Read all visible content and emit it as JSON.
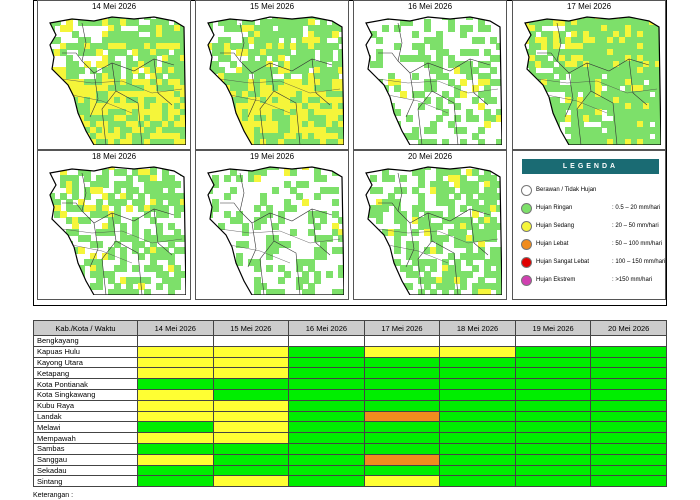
{
  "colors": {
    "none": "#ffffff",
    "ringan": "#7de06a",
    "sedang": "#f5f53a",
    "lebat": "#f08c1e",
    "sangat_lebat": "#e00000",
    "ekstrem": "#d040b0",
    "table_green": "#00ee00",
    "table_yellow": "#ffff33",
    "table_orange": "#f08c1e"
  },
  "panels": [
    {
      "date": "14 Mei 2026",
      "icon": "rain-forecast-map-icon"
    },
    {
      "date": "15 Mei 2026",
      "icon": "rain-forecast-map-icon"
    },
    {
      "date": "16 Mei 2026",
      "icon": "rain-forecast-map-icon"
    },
    {
      "date": "17 Mei 2026",
      "icon": "rain-forecast-map-icon"
    },
    {
      "date": "18 Mei 2026",
      "icon": "rain-forecast-map-icon"
    },
    {
      "date": "19 Mei 2026",
      "icon": "rain-forecast-map-icon"
    },
    {
      "date": "20 Mei 2026",
      "icon": "rain-forecast-map-icon"
    }
  ],
  "legend": {
    "title": "LEGENDA",
    "items": [
      {
        "name": "Berawan / Tidak Hujan",
        "range": "",
        "color": "#ffffff"
      },
      {
        "name": "Hujan Ringan",
        "range": ": 0.5 – 20 mm/hari",
        "color": "#7de06a"
      },
      {
        "name": "Hujan Sedang",
        "range": ": 20 – 50 mm/hari",
        "color": "#f5f53a"
      },
      {
        "name": "Hujan Lebat",
        "range": ": 50 – 100 mm/hari",
        "color": "#f08c1e"
      },
      {
        "name": "Hujan Sangat Lebat",
        "range": ": 100 – 150 mm/hari",
        "color": "#e00000"
      },
      {
        "name": "Hujan Ekstrem",
        "range": ": >150 mm/hari",
        "color": "#d040b0"
      }
    ]
  },
  "table": {
    "header": [
      "Kab./Kota / Waktu",
      "14 Mei 2026",
      "15 Mei 2026",
      "16 Mei 2026",
      "17 Mei 2026",
      "18 Mei 2026",
      "19 Mei 2026",
      "20 Mei 2026"
    ],
    "rows": [
      {
        "name": "Bengkayang",
        "cells": [
          "W",
          "W",
          "W",
          "W",
          "W",
          "W",
          "W"
        ]
      },
      {
        "name": "Kapuas Hulu",
        "cells": [
          "Y",
          "Y",
          "G",
          "Y",
          "Y",
          "G",
          "G"
        ]
      },
      {
        "name": "Kayong Utara",
        "cells": [
          "Y",
          "Y",
          "G",
          "G",
          "G",
          "G",
          "G"
        ]
      },
      {
        "name": "Ketapang",
        "cells": [
          "Y",
          "Y",
          "G",
          "G",
          "G",
          "G",
          "G"
        ]
      },
      {
        "name": "Kota Pontianak",
        "cells": [
          "G",
          "G",
          "G",
          "G",
          "G",
          "G",
          "G"
        ]
      },
      {
        "name": "Kota Singkawang",
        "cells": [
          "Y",
          "G",
          "G",
          "G",
          "G",
          "G",
          "G"
        ]
      },
      {
        "name": "Kubu Raya",
        "cells": [
          "Y",
          "Y",
          "G",
          "G",
          "G",
          "G",
          "G"
        ]
      },
      {
        "name": "Landak",
        "cells": [
          "Y",
          "Y",
          "G",
          "O",
          "G",
          "G",
          "G"
        ]
      },
      {
        "name": "Melawi",
        "cells": [
          "G",
          "Y",
          "G",
          "G",
          "G",
          "G",
          "G"
        ]
      },
      {
        "name": "Mempawah",
        "cells": [
          "Y",
          "Y",
          "G",
          "G",
          "G",
          "G",
          "G"
        ]
      },
      {
        "name": "Sambas",
        "cells": [
          "G",
          "G",
          "G",
          "G",
          "G",
          "G",
          "G"
        ]
      },
      {
        "name": "Sanggau",
        "cells": [
          "Y",
          "G",
          "G",
          "O",
          "G",
          "G",
          "G"
        ]
      },
      {
        "name": "Sekadau",
        "cells": [
          "G",
          "G",
          "G",
          "G",
          "G",
          "G",
          "G"
        ]
      },
      {
        "name": "Sintang",
        "cells": [
          "G",
          "Y",
          "G",
          "Y",
          "G",
          "G",
          "G"
        ]
      }
    ]
  },
  "footnote": "Keterangan :"
}
